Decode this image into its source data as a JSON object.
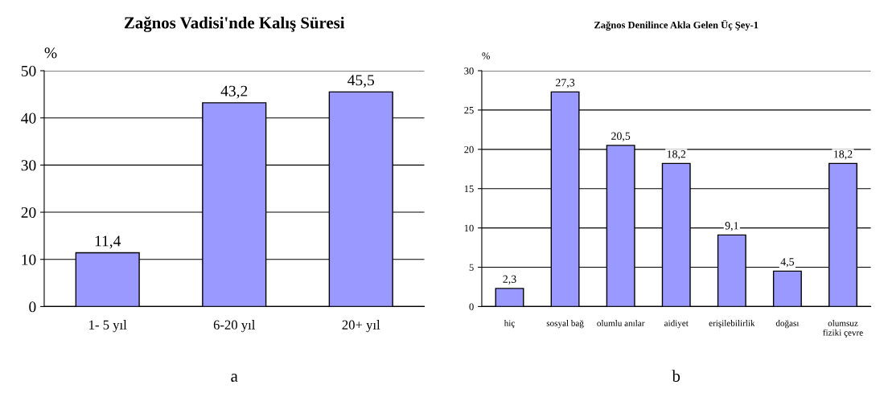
{
  "chart_data": [
    {
      "type": "bar",
      "title": "Zağnos Vadisi'nde Kalış Süresi",
      "ylabel": "%",
      "categories": [
        "1- 5 yıl",
        "6-20 yıl",
        "20+ yıl"
      ],
      "values": [
        11.4,
        43.2,
        45.5
      ],
      "value_labels": [
        "11,4",
        "43,2",
        "45,5"
      ],
      "color": "#9999ff",
      "ylim": [
        0,
        50
      ],
      "yticks": [
        0,
        10,
        20,
        30,
        40,
        50
      ],
      "grid": "y",
      "annotations": [
        "a"
      ]
    },
    {
      "type": "bar",
      "title": "Zağnos Denilince Akla Gelen Üç Şey-1",
      "ylabel": "%",
      "categories": [
        "hiç",
        "sosyal bağ",
        "olumlu anılar",
        "aidiyet",
        "erişilebilirlik",
        "doğası",
        "olumsuz\nfiziki çevre"
      ],
      "values": [
        2.3,
        27.3,
        20.5,
        18.2,
        9.1,
        4.5,
        18.2
      ],
      "value_labels": [
        "2,3",
        "27,3",
        "20,5",
        "18,2",
        "9,1",
        "4,5",
        "18,2"
      ],
      "color": "#9999ff",
      "ylim": [
        0,
        30
      ],
      "yticks": [
        0,
        5,
        10,
        15,
        20,
        25,
        30
      ],
      "grid": "y",
      "annotations": [
        "b"
      ]
    }
  ]
}
